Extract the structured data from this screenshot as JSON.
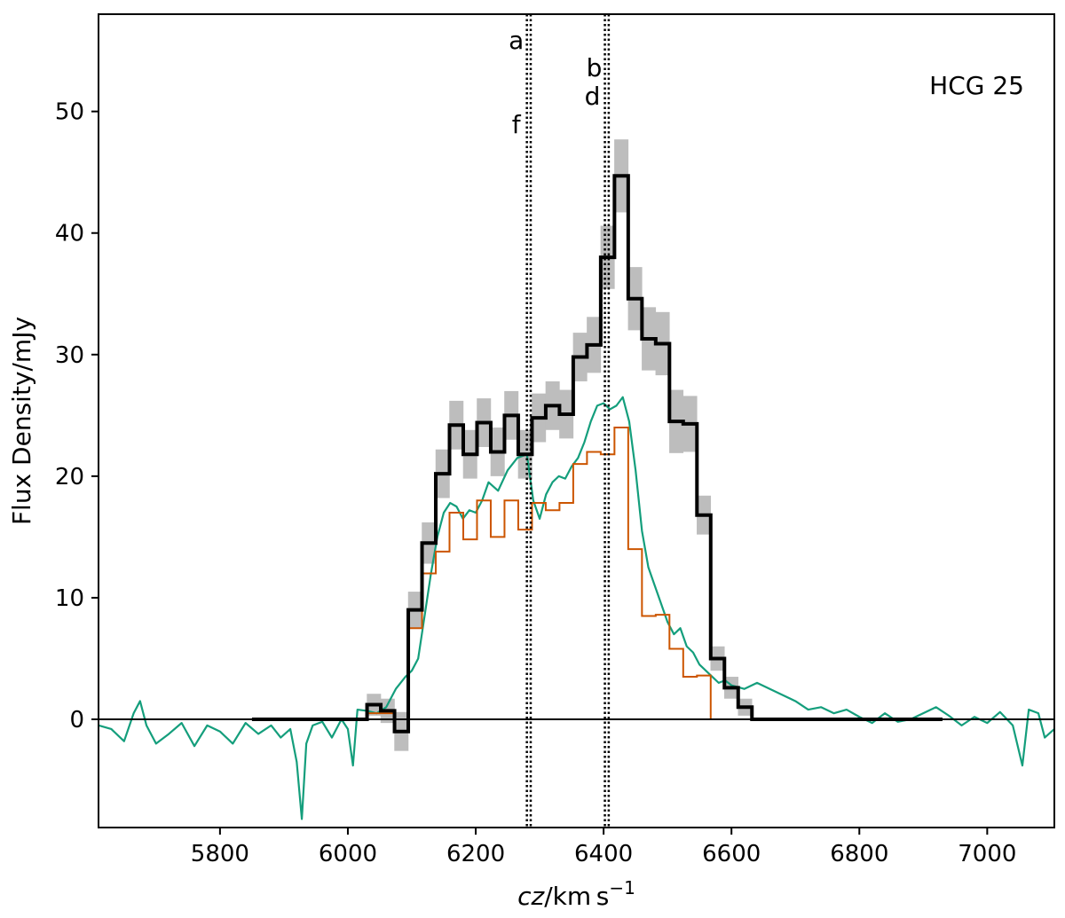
{
  "chart_data": {
    "type": "line",
    "title": "",
    "annotation": "HCG 25",
    "xlabel": "cz/km s⁻¹",
    "ylabel": "Flux Density/mJy",
    "xlim": [
      5610,
      7105
    ],
    "ylim": [
      -8.9,
      58
    ],
    "xticks": [
      5800,
      6000,
      6200,
      6400,
      6600,
      6800,
      7000
    ],
    "yticks": [
      0,
      10,
      20,
      30,
      40,
      50
    ],
    "zero_line": 0,
    "vlines": [
      {
        "x": 6280,
        "labels": [
          "a",
          "f"
        ]
      },
      {
        "x": 6286,
        "labels": []
      },
      {
        "x": 6402,
        "labels": [
          "b",
          "d"
        ]
      },
      {
        "x": 6408,
        "labels": []
      }
    ],
    "series": [
      {
        "role": "spectrum-step",
        "color": "#000000",
        "uncertainty_color": "#bdbdbd",
        "bin_width": 21.5,
        "bin_start": 6030,
        "values": [
          1.2,
          0.7,
          -1.0,
          9.0,
          14.5,
          20.2,
          24.2,
          21.8,
          24.4,
          22.0,
          25.0,
          21.8,
          24.8,
          25.8,
          25.1,
          29.8,
          30.8,
          38.0,
          44.7,
          34.6,
          31.3,
          30.9,
          24.5,
          24.3,
          16.8,
          5.0,
          2.6,
          1.0,
          0.0
        ],
        "errors": [
          0.9,
          1.0,
          1.6,
          1.5,
          1.7,
          2.0,
          2.0,
          2.0,
          2.0,
          2.0,
          2.0,
          2.0,
          2.0,
          2.0,
          2.0,
          2.0,
          2.3,
          2.6,
          3.0,
          2.6,
          2.6,
          2.6,
          2.6,
          2.3,
          1.6,
          1.0,
          0.9,
          0.7,
          0.0
        ],
        "zero_before": [
          5850,
          6030
        ],
        "zero_after": [
          6640,
          6930
        ]
      },
      {
        "role": "spectrum-step-secondary",
        "color": "#cc5500",
        "bin_width": 21.5,
        "bin_start": 6030,
        "values": [
          0.5,
          0.5,
          -1.0,
          7.5,
          12.0,
          13.8,
          17.0,
          14.8,
          18.0,
          15.0,
          18.0,
          15.6,
          17.8,
          17.2,
          17.8,
          21.0,
          22.0,
          21.8,
          24.0,
          14.0,
          8.5,
          8.6,
          5.8,
          3.5,
          3.6,
          0.0
        ],
        "zero_before": [
          6010,
          6030
        ]
      },
      {
        "role": "spectrum-line",
        "color": "#149e7c",
        "points": [
          [
            5610,
            -0.5
          ],
          [
            5630,
            -0.8
          ],
          [
            5650,
            -1.8
          ],
          [
            5665,
            0.5
          ],
          [
            5675,
            1.5
          ],
          [
            5685,
            -0.5
          ],
          [
            5700,
            -2.0
          ],
          [
            5720,
            -1.2
          ],
          [
            5740,
            -0.3
          ],
          [
            5760,
            -2.2
          ],
          [
            5780,
            -0.5
          ],
          [
            5800,
            -1.0
          ],
          [
            5820,
            -2.0
          ],
          [
            5840,
            -0.3
          ],
          [
            5860,
            -1.2
          ],
          [
            5880,
            -0.5
          ],
          [
            5895,
            -1.5
          ],
          [
            5910,
            -0.8
          ],
          [
            5920,
            -3.5
          ],
          [
            5928,
            -8.2
          ],
          [
            5935,
            -2.0
          ],
          [
            5945,
            -0.5
          ],
          [
            5960,
            -0.2
          ],
          [
            5975,
            -1.5
          ],
          [
            5990,
            0.0
          ],
          [
            6000,
            -0.8
          ],
          [
            6008,
            -3.8
          ],
          [
            6015,
            0.8
          ],
          [
            6030,
            0.7
          ],
          [
            6045,
            0.5
          ],
          [
            6060,
            1.0
          ],
          [
            6075,
            2.5
          ],
          [
            6090,
            3.5
          ],
          [
            6100,
            4.0
          ],
          [
            6110,
            5.0
          ],
          [
            6120,
            8.5
          ],
          [
            6130,
            12.0
          ],
          [
            6140,
            15.0
          ],
          [
            6150,
            17.0
          ],
          [
            6160,
            17.8
          ],
          [
            6170,
            17.5
          ],
          [
            6180,
            16.5
          ],
          [
            6190,
            17.2
          ],
          [
            6200,
            17.0
          ],
          [
            6210,
            18.0
          ],
          [
            6220,
            19.5
          ],
          [
            6235,
            18.8
          ],
          [
            6250,
            20.5
          ],
          [
            6265,
            21.5
          ],
          [
            6280,
            21.8
          ],
          [
            6290,
            18.0
          ],
          [
            6300,
            16.5
          ],
          [
            6310,
            18.5
          ],
          [
            6320,
            19.5
          ],
          [
            6330,
            20.0
          ],
          [
            6340,
            19.8
          ],
          [
            6350,
            20.8
          ],
          [
            6360,
            21.5
          ],
          [
            6370,
            22.8
          ],
          [
            6380,
            24.5
          ],
          [
            6390,
            25.8
          ],
          [
            6400,
            26.0
          ],
          [
            6410,
            25.5
          ],
          [
            6420,
            25.8
          ],
          [
            6430,
            26.5
          ],
          [
            6440,
            24.5
          ],
          [
            6450,
            20.5
          ],
          [
            6460,
            15.5
          ],
          [
            6470,
            12.5
          ],
          [
            6480,
            11.0
          ],
          [
            6490,
            9.5
          ],
          [
            6500,
            8.0
          ],
          [
            6510,
            7.0
          ],
          [
            6520,
            7.5
          ],
          [
            6530,
            6.0
          ],
          [
            6540,
            5.5
          ],
          [
            6550,
            4.5
          ],
          [
            6560,
            4.0
          ],
          [
            6570,
            3.5
          ],
          [
            6580,
            3.0
          ],
          [
            6590,
            3.2
          ],
          [
            6600,
            2.8
          ],
          [
            6620,
            2.5
          ],
          [
            6640,
            3.0
          ],
          [
            6660,
            2.5
          ],
          [
            6680,
            2.0
          ],
          [
            6700,
            1.5
          ],
          [
            6720,
            0.8
          ],
          [
            6740,
            1.0
          ],
          [
            6760,
            0.5
          ],
          [
            6780,
            0.8
          ],
          [
            6800,
            0.2
          ],
          [
            6820,
            -0.3
          ],
          [
            6840,
            0.5
          ],
          [
            6860,
            -0.2
          ],
          [
            6880,
            0.0
          ],
          [
            6900,
            0.5
          ],
          [
            6920,
            1.0
          ],
          [
            6940,
            0.3
          ],
          [
            6960,
            -0.5
          ],
          [
            6980,
            0.2
          ],
          [
            7000,
            -0.3
          ],
          [
            7020,
            0.6
          ],
          [
            7040,
            -0.5
          ],
          [
            7055,
            -3.8
          ],
          [
            7065,
            0.8
          ],
          [
            7080,
            0.5
          ],
          [
            7090,
            -1.5
          ],
          [
            7105,
            -0.8
          ]
        ]
      }
    ]
  }
}
